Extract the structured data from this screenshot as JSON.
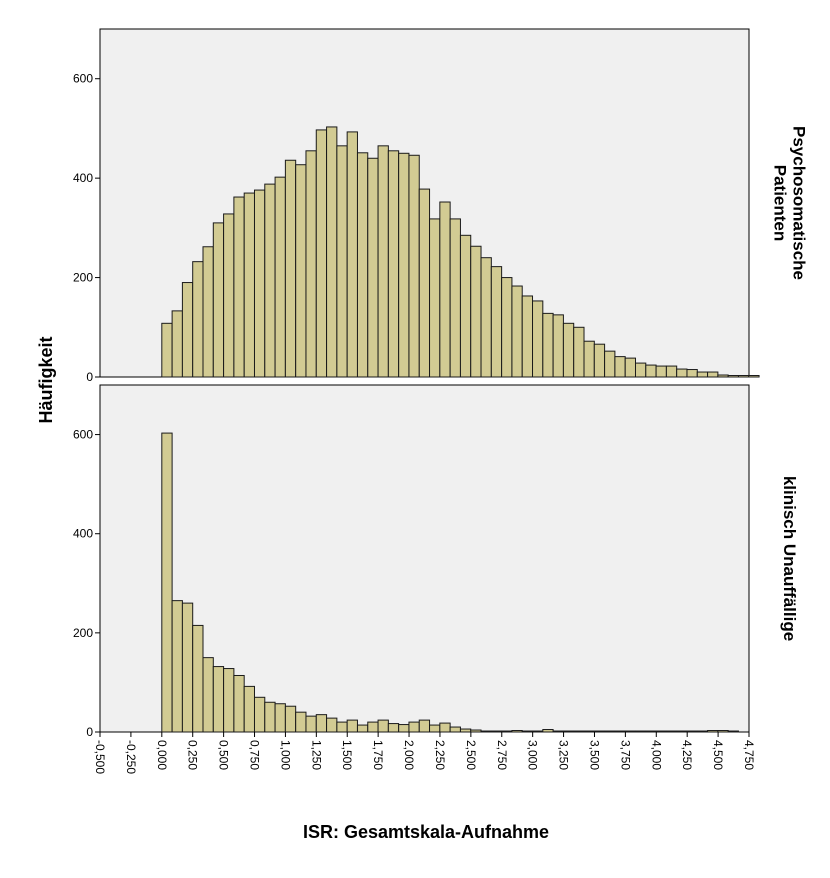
{
  "chart_data": {
    "type": "bar",
    "xlabel": "ISR: Gesamtskala-Aufnahme",
    "ylabel": "Häufigkeit",
    "xlim": [
      -0.5,
      4.75
    ],
    "ylim": [
      0,
      700
    ],
    "bin_width": 0.0833,
    "x_ticks": [
      "-0,500",
      "-0,250",
      "0,000",
      "0,250",
      "0,500",
      "0,750",
      "1,000",
      "1,250",
      "1,500",
      "1,750",
      "2,000",
      "2,250",
      "2,500",
      "2,750",
      "3,000",
      "3,250",
      "3,500",
      "3,750",
      "4,000",
      "4,250",
      "4,500",
      "4,750"
    ],
    "x_tick_values": [
      -0.5,
      -0.25,
      0,
      0.25,
      0.5,
      0.75,
      1.0,
      1.25,
      1.5,
      1.75,
      2.0,
      2.25,
      2.5,
      2.75,
      3.0,
      3.25,
      3.5,
      3.75,
      4.0,
      4.25,
      4.5,
      4.75
    ],
    "y_ticks": [
      "0",
      "200",
      "400",
      "600"
    ],
    "y_tick_values": [
      0,
      200,
      400,
      600
    ],
    "colors": {
      "bar_fill": "#D2CB93",
      "bar_stroke": "#1a1a1a",
      "panel_bg": "#F0F0F0"
    },
    "panels": [
      {
        "label_lines": [
          "Psychosomatische",
          "Patienten"
        ],
        "bin_start": 0.0,
        "counts": [
          108,
          133,
          190,
          232,
          262,
          310,
          328,
          362,
          370,
          376,
          388,
          402,
          436,
          427,
          455,
          497,
          503,
          465,
          493,
          451,
          440,
          465,
          455,
          450,
          446,
          378,
          318,
          352,
          318,
          285,
          263,
          240,
          222,
          200,
          183,
          163,
          153,
          128,
          125,
          108,
          100,
          72,
          66,
          52,
          41,
          38,
          28,
          24,
          22,
          22,
          16,
          15,
          10,
          10,
          4,
          3,
          3,
          3
        ]
      },
      {
        "label_lines": [
          "klinisch Unauffällige"
        ],
        "bin_start": 0.0,
        "counts": [
          603,
          265,
          260,
          215,
          150,
          132,
          128,
          114,
          92,
          70,
          60,
          57,
          52,
          40,
          32,
          35,
          28,
          20,
          24,
          14,
          20,
          24,
          17,
          15,
          20,
          24,
          14,
          18,
          10,
          6,
          4,
          2,
          2,
          2,
          3,
          2,
          2,
          5,
          2,
          2,
          2,
          2,
          2,
          2,
          2,
          2,
          2,
          2,
          2,
          2,
          2,
          2,
          2,
          3,
          3,
          2
        ]
      }
    ]
  }
}
